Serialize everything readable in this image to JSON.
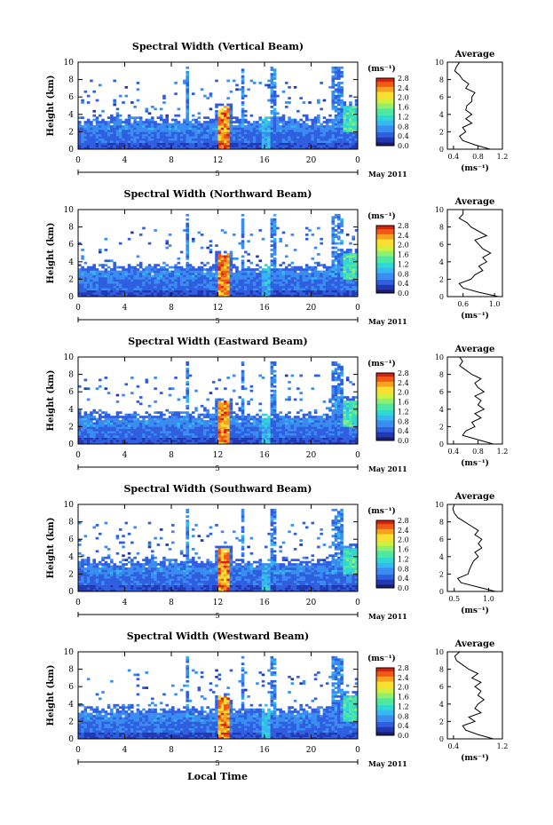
{
  "figure": {
    "xaxis_title": "Local Time",
    "date_label": "May 2011",
    "day_label": "5",
    "color_unit": "(ms⁻¹)",
    "average_title": "Average",
    "average_unit": "(ms⁻¹)",
    "ylabel": "Height (km)"
  },
  "chart_data": [
    {
      "type": "heatmap",
      "title": "Spectral Width (Vertical Beam)",
      "xlabel": "Local Time",
      "ylabel": "Height (km)",
      "xlim": [
        0,
        24
      ],
      "ylim": [
        0,
        10
      ],
      "xticks": [
        "0",
        "4",
        "8",
        "12",
        "16",
        "20",
        "0"
      ],
      "yticks": [
        "0",
        "2",
        "4",
        "6",
        "8",
        "10"
      ],
      "colorbar": {
        "label": "(ms⁻¹)",
        "range": [
          0.0,
          2.8
        ],
        "ticks": [
          "2.8",
          "2.4",
          "2.0",
          "1.6",
          "1.2",
          "0.8",
          "0.4",
          "0.0"
        ]
      },
      "average_profile": {
        "title": "Average",
        "xlabel": "(ms⁻¹)",
        "xlim": [
          0.3,
          1.2
        ],
        "xticks": [
          "0.4",
          "0.8",
          "1.2"
        ],
        "height": [
          0,
          0.5,
          1,
          1.5,
          2,
          2.5,
          3,
          3.5,
          4,
          4.5,
          5,
          5.5,
          6,
          6.5,
          7,
          7.5,
          8,
          8.5,
          9,
          9.5,
          10
        ],
        "value": [
          1.0,
          0.75,
          0.55,
          0.5,
          0.6,
          0.55,
          0.7,
          0.6,
          0.7,
          0.6,
          0.62,
          0.7,
          0.7,
          0.75,
          0.6,
          0.65,
          0.55,
          0.5,
          0.42,
          0.45,
          0.5
        ]
      }
    },
    {
      "type": "heatmap",
      "title": "Spectral Width (Northward Beam)",
      "xlabel": "Local Time",
      "ylabel": "Height (km)",
      "xlim": [
        0,
        24
      ],
      "ylim": [
        0,
        10
      ],
      "xticks": [
        "0",
        "4",
        "8",
        "12",
        "16",
        "20",
        "0"
      ],
      "yticks": [
        "0",
        "2",
        "4",
        "6",
        "8",
        "10"
      ],
      "colorbar": {
        "label": "(ms⁻¹)",
        "range": [
          0.0,
          2.8
        ],
        "ticks": [
          "2.8",
          "2.4",
          "2.0",
          "1.6",
          "1.2",
          "0.8",
          "0.4",
          "0.0"
        ]
      },
      "average_profile": {
        "title": "Average",
        "xlabel": "(ms⁻¹)",
        "xlim": [
          0.4,
          1.1
        ],
        "xticks": [
          "0.6",
          "1.0"
        ],
        "height": [
          0,
          0.5,
          1,
          1.5,
          2,
          2.5,
          3,
          3.5,
          4,
          4.5,
          5,
          5.5,
          6,
          6.5,
          7,
          7.5,
          8,
          8.5,
          9,
          9.5,
          10
        ],
        "value": [
          1.05,
          0.8,
          0.6,
          0.55,
          0.7,
          0.75,
          0.85,
          0.8,
          0.9,
          0.85,
          0.95,
          0.85,
          0.8,
          0.75,
          0.9,
          0.8,
          0.7,
          0.65,
          0.55,
          0.6,
          0.6
        ]
      }
    },
    {
      "type": "heatmap",
      "title": "Spectral Width (Eastward Beam)",
      "xlabel": "Local Time",
      "ylabel": "Height (km)",
      "xlim": [
        0,
        24
      ],
      "ylim": [
        0,
        10
      ],
      "xticks": [
        "0",
        "4",
        "8",
        "12",
        "16",
        "20",
        "0"
      ],
      "yticks": [
        "0",
        "2",
        "4",
        "6",
        "8",
        "10"
      ],
      "colorbar": {
        "label": "(ms⁻¹)",
        "range": [
          0.0,
          2.8
        ],
        "ticks": [
          "2.8",
          "2.4",
          "2.0",
          "1.6",
          "1.2",
          "0.8",
          "0.4",
          "0.0"
        ]
      },
      "average_profile": {
        "title": "Average",
        "xlabel": "(ms⁻¹)",
        "xlim": [
          0.3,
          1.2
        ],
        "xticks": [
          "0.4",
          "0.8",
          "1.2"
        ],
        "height": [
          0,
          0.5,
          1,
          1.5,
          2,
          2.5,
          3,
          3.5,
          4,
          4.5,
          5,
          5.5,
          6,
          6.5,
          7,
          7.5,
          8,
          8.5,
          9,
          9.5,
          10
        ],
        "value": [
          1.05,
          0.8,
          0.55,
          0.6,
          0.75,
          0.7,
          0.85,
          0.75,
          0.9,
          0.8,
          0.85,
          0.75,
          0.9,
          0.8,
          0.75,
          0.85,
          0.7,
          0.6,
          0.5,
          0.55,
          0.5
        ]
      }
    },
    {
      "type": "heatmap",
      "title": "Spectral Width (Southward Beam)",
      "xlabel": "Local Time",
      "ylabel": "Height (km)",
      "xlim": [
        0,
        24
      ],
      "ylim": [
        0,
        10
      ],
      "xticks": [
        "0",
        "4",
        "8",
        "12",
        "16",
        "20",
        "0"
      ],
      "yticks": [
        "0",
        "2",
        "4",
        "6",
        "8",
        "10"
      ],
      "colorbar": {
        "label": "(ms⁻¹)",
        "range": [
          0.0,
          2.8
        ],
        "ticks": [
          "2.8",
          "2.4",
          "2.0",
          "1.6",
          "1.2",
          "0.8",
          "0.4",
          "0.0"
        ]
      },
      "average_profile": {
        "title": "Average",
        "xlabel": "(ms⁻¹)",
        "xlim": [
          0.4,
          1.2
        ],
        "xticks": [
          "0.5",
          "1.0"
        ],
        "height": [
          0,
          0.5,
          1,
          1.5,
          2,
          2.5,
          3,
          3.5,
          4,
          4.5,
          5,
          5.5,
          6,
          6.5,
          7,
          7.5,
          8,
          8.5,
          9,
          9.5,
          10
        ],
        "value": [
          1.1,
          0.85,
          0.6,
          0.55,
          0.7,
          0.72,
          0.75,
          0.78,
          0.85,
          0.8,
          0.9,
          0.85,
          0.9,
          0.8,
          0.85,
          0.75,
          0.65,
          0.55,
          0.5,
          0.48,
          0.5
        ]
      }
    },
    {
      "type": "heatmap",
      "title": "Spectral Width (Westward Beam)",
      "xlabel": "Local Time",
      "ylabel": "Height (km)",
      "xlim": [
        0,
        24
      ],
      "ylim": [
        0,
        10
      ],
      "xticks": [
        "0",
        "4",
        "8",
        "12",
        "16",
        "20",
        "0"
      ],
      "yticks": [
        "0",
        "2",
        "4",
        "6",
        "8",
        "10"
      ],
      "colorbar": {
        "label": "(ms⁻¹)",
        "range": [
          0.0,
          2.8
        ],
        "ticks": [
          "2.8",
          "2.4",
          "2.0",
          "1.6",
          "1.2",
          "0.8",
          "0.4",
          "0.0"
        ]
      },
      "average_profile": {
        "title": "Average",
        "xlabel": "(ms⁻¹)",
        "xlim": [
          0.3,
          1.2
        ],
        "xticks": [
          "0.4",
          "1.2"
        ],
        "height": [
          0,
          0.5,
          1,
          1.5,
          2,
          2.5,
          3,
          3.5,
          4,
          4.5,
          5,
          5.5,
          6,
          6.5,
          7,
          7.5,
          8,
          8.5,
          9,
          9.5,
          10
        ],
        "value": [
          1.05,
          0.8,
          0.6,
          0.55,
          0.75,
          0.65,
          0.85,
          0.75,
          0.8,
          0.9,
          0.8,
          0.85,
          0.75,
          0.85,
          0.7,
          0.8,
          0.65,
          0.55,
          0.45,
          0.42,
          0.5
        ]
      }
    }
  ]
}
